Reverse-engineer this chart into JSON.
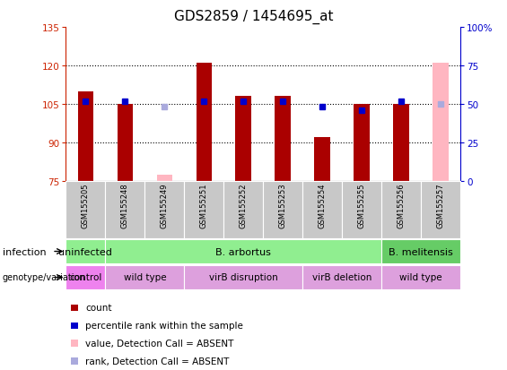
{
  "title": "GDS2859 / 1454695_at",
  "samples": [
    "GSM155205",
    "GSM155248",
    "GSM155249",
    "GSM155251",
    "GSM155252",
    "GSM155253",
    "GSM155254",
    "GSM155255",
    "GSM155256",
    "GSM155257"
  ],
  "count_values": [
    110,
    105,
    77.5,
    121,
    108,
    108,
    92,
    105,
    105,
    121
  ],
  "count_absent": [
    false,
    false,
    true,
    false,
    false,
    false,
    false,
    false,
    false,
    true
  ],
  "rank_values": [
    52,
    52,
    48,
    52,
    52,
    52,
    48,
    46,
    52,
    50
  ],
  "rank_absent": [
    false,
    false,
    true,
    false,
    false,
    false,
    false,
    false,
    false,
    true
  ],
  "ylim_left": [
    75,
    135
  ],
  "ylim_right": [
    0,
    100
  ],
  "yticks_left": [
    75,
    90,
    105,
    120,
    135
  ],
  "yticks_right": [
    0,
    25,
    50,
    75,
    100
  ],
  "ytick_labels_right": [
    "0",
    "25",
    "50",
    "75",
    "100%"
  ],
  "hgrid_at": [
    90,
    105,
    120
  ],
  "bar_color": "#AA0000",
  "bar_absent_color": "#FFB6C1",
  "rank_color": "#0000CC",
  "rank_absent_color": "#AAAADD",
  "left_tick_color": "#CC2200",
  "right_tick_color": "#0000CC",
  "sample_box_color": "#C8C8C8",
  "infection_row": [
    {
      "label": "uninfected",
      "start": 0,
      "end": 1,
      "color": "#90EE90"
    },
    {
      "label": "B. arbortus",
      "start": 1,
      "end": 8,
      "color": "#90EE90"
    },
    {
      "label": "B. melitensis",
      "start": 8,
      "end": 10,
      "color": "#66CC66"
    }
  ],
  "genotype_row": [
    {
      "label": "control",
      "start": 0,
      "end": 1,
      "color": "#EE82EE"
    },
    {
      "label": "wild type",
      "start": 1,
      "end": 3,
      "color": "#DDA0DD"
    },
    {
      "label": "virB disruption",
      "start": 3,
      "end": 6,
      "color": "#DDA0DD"
    },
    {
      "label": "virB deletion",
      "start": 6,
      "end": 8,
      "color": "#DDA0DD"
    },
    {
      "label": "wild type",
      "start": 8,
      "end": 10,
      "color": "#DDA0DD"
    }
  ],
  "legend": [
    {
      "color": "#AA0000",
      "label": "count"
    },
    {
      "color": "#0000CC",
      "label": "percentile rank within the sample"
    },
    {
      "color": "#FFB6C1",
      "label": "value, Detection Call = ABSENT"
    },
    {
      "color": "#AAAADD",
      "label": "rank, Detection Call = ABSENT"
    }
  ]
}
